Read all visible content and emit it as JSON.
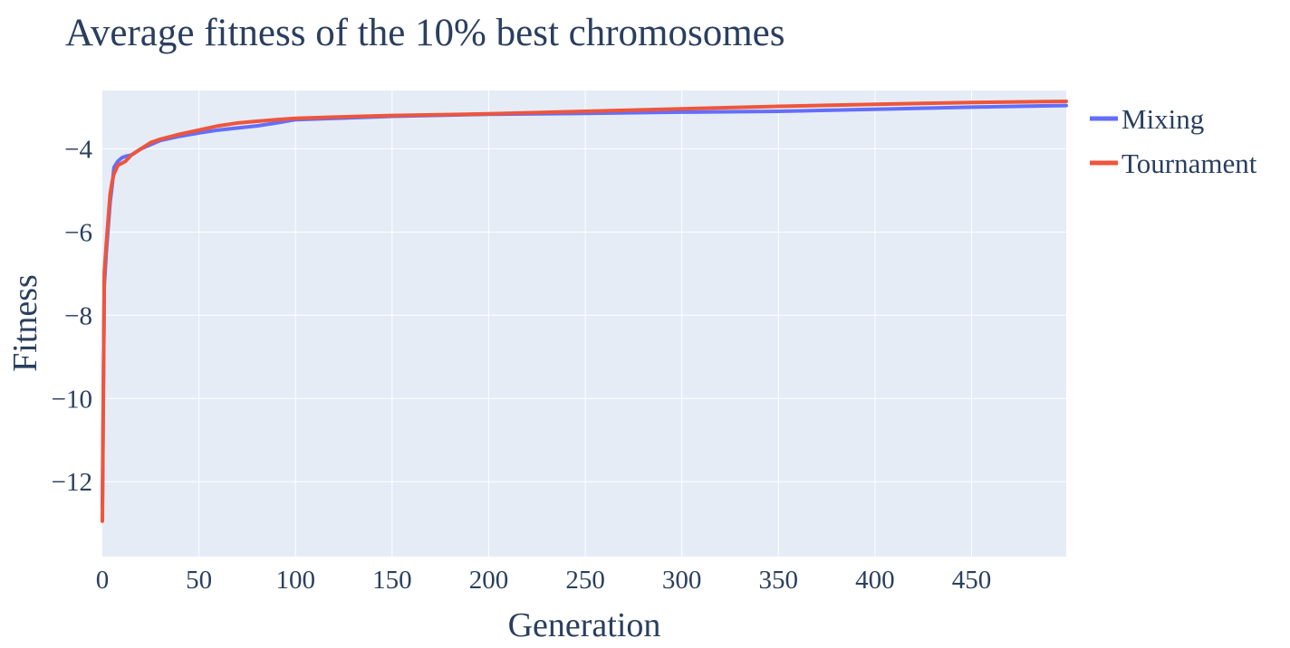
{
  "chart_data": {
    "type": "line",
    "title": "Average fitness of the 10% best chromosomes",
    "xlabel": "Generation",
    "ylabel": "Fitness",
    "xlim": [
      0,
      499
    ],
    "ylim": [
      -13.8,
      -2.6
    ],
    "xticks": [
      0,
      50,
      100,
      150,
      200,
      250,
      300,
      350,
      400,
      450
    ],
    "yticks": [
      -12,
      -10,
      -8,
      -6,
      -4
    ],
    "ytick_labels": [
      "−12",
      "−10",
      "−8",
      "−6",
      "−4"
    ],
    "xtick_labels": [
      "0",
      "50",
      "100",
      "150",
      "200",
      "250",
      "300",
      "350",
      "400",
      "450"
    ],
    "grid": true,
    "legend_position": "top-right outside",
    "series": [
      {
        "name": "Mixing",
        "color": "#636efa",
        "x": [
          0,
          1,
          2,
          3,
          4,
          5,
          6,
          8,
          10,
          12,
          15,
          20,
          25,
          30,
          40,
          50,
          60,
          70,
          80,
          90,
          100,
          120,
          150,
          200,
          250,
          300,
          350,
          400,
          450,
          499
        ],
        "y": [
          -12.6,
          -7.3,
          -6.5,
          -5.9,
          -5.3,
          -4.9,
          -4.45,
          -4.3,
          -4.22,
          -4.18,
          -4.15,
          -4.0,
          -3.9,
          -3.8,
          -3.7,
          -3.62,
          -3.55,
          -3.5,
          -3.45,
          -3.38,
          -3.3,
          -3.27,
          -3.22,
          -3.17,
          -3.15,
          -3.12,
          -3.1,
          -3.05,
          -3.0,
          -2.96
        ]
      },
      {
        "name": "Tournament",
        "color": "#ef553b",
        "x": [
          0,
          1,
          2,
          3,
          4,
          5,
          6,
          8,
          10,
          12,
          15,
          20,
          25,
          30,
          40,
          50,
          60,
          70,
          80,
          90,
          100,
          120,
          150,
          200,
          250,
          300,
          350,
          400,
          450,
          499
        ],
        "y": [
          -12.95,
          -7.0,
          -6.3,
          -5.7,
          -5.1,
          -4.8,
          -4.6,
          -4.4,
          -4.35,
          -4.3,
          -4.15,
          -4.0,
          -3.85,
          -3.77,
          -3.65,
          -3.55,
          -3.45,
          -3.38,
          -3.34,
          -3.3,
          -3.27,
          -3.24,
          -3.2,
          -3.16,
          -3.1,
          -3.04,
          -2.98,
          -2.93,
          -2.89,
          -2.86
        ]
      }
    ]
  }
}
